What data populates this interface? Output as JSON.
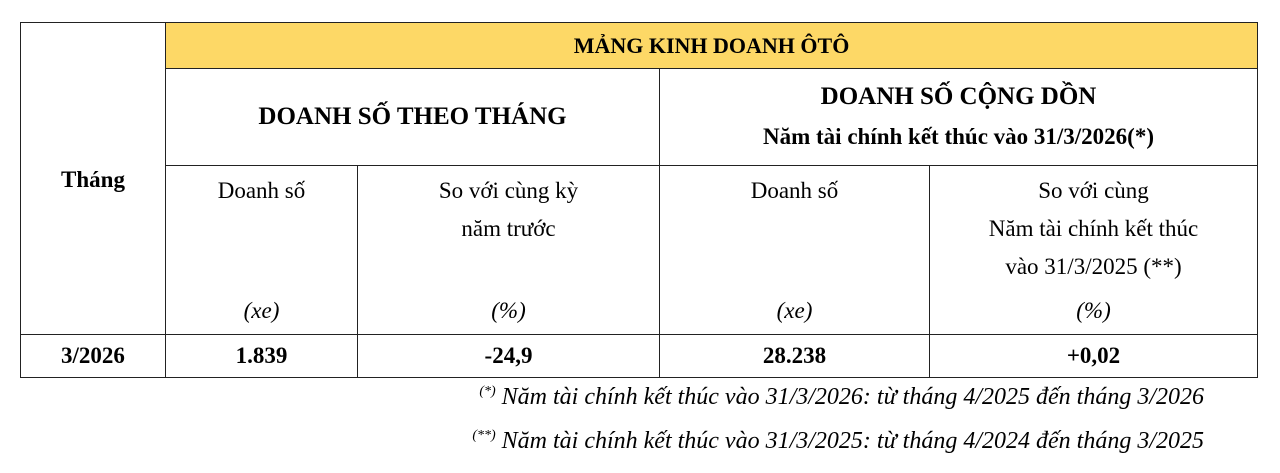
{
  "table": {
    "month_header": "Tháng",
    "segment_title": "MẢNG KINH DOANH ÔTÔ",
    "group_monthly": "DOANH SỐ THEO THÁNG",
    "group_cumulative_line1": "DOANH SỐ CỘNG DỒN",
    "group_cumulative_line2": "Năm tài chính kết thúc vào 31/3/2026(*)",
    "header_color": "#fdd866",
    "columns": [
      {
        "label": "Doanh số",
        "label2": "",
        "label3": "",
        "unit": "(xe)"
      },
      {
        "label": "So với cùng kỳ",
        "label2": "năm trước",
        "label3": "",
        "unit": "(%)"
      },
      {
        "label": "Doanh số",
        "label2": "",
        "label3": "",
        "unit": "(xe)"
      },
      {
        "label": "So với cùng",
        "label2": "Năm tài chính kết thúc",
        "label3": "vào 31/3/2025 (**)",
        "unit": "(%)"
      }
    ],
    "rows": [
      {
        "month": "3/2026",
        "monthly_sales": "1.839",
        "monthly_yoy": "-24,9",
        "cumulative_sales": "28.238",
        "cumulative_yoy": "+0,02"
      }
    ]
  },
  "footnotes": [
    {
      "mark": "(*)",
      "text": " Năm tài chính kết thúc vào 31/3/2026: từ tháng 4/2025 đến tháng 3/2026"
    },
    {
      "mark": "(**)",
      "text": " Năm tài chính kết thúc vào 31/3/2025: từ tháng 4/2024 đến tháng 3/2025"
    }
  ]
}
